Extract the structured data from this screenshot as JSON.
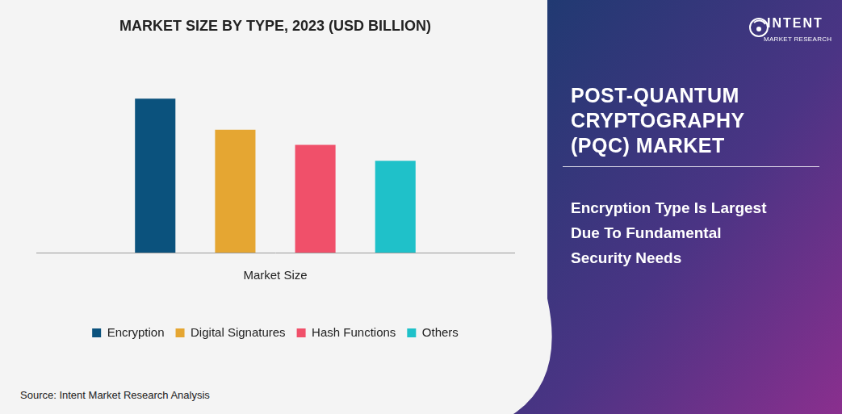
{
  "chart_data": {
    "type": "bar",
    "title": "MARKET SIZE BY TYPE, 2023 (USD BILLION)",
    "categories": [
      "Market Size"
    ],
    "series": [
      {
        "name": "Encryption",
        "color": "#0b527d",
        "values": [
          1.93
        ]
      },
      {
        "name": "Digital Signatures",
        "color": "#e5a632",
        "values": [
          1.54
        ]
      },
      {
        "name": "Hash Functions",
        "color": "#f0506a",
        "values": [
          1.35
        ]
      },
      {
        "name": "Others",
        "color": "#1fc1c9",
        "values": [
          1.15
        ]
      }
    ],
    "ylim": [
      0,
      2.2
    ],
    "tick_labels": "x",
    "grid": false,
    "legend": "bottom"
  },
  "source": "Source: Intent Market Research Analysis",
  "panel": {
    "title_lines": [
      "POST-QUANTUM",
      "CRYPTOGRAPHY",
      "(PQC) MARKET"
    ],
    "headline_lines": [
      "Encryption Type Is Largest",
      "Due To Fundamental",
      "Security Needs"
    ]
  },
  "logo": {
    "name": "INTENT",
    "tagline": "MARKET RESEARCH"
  }
}
